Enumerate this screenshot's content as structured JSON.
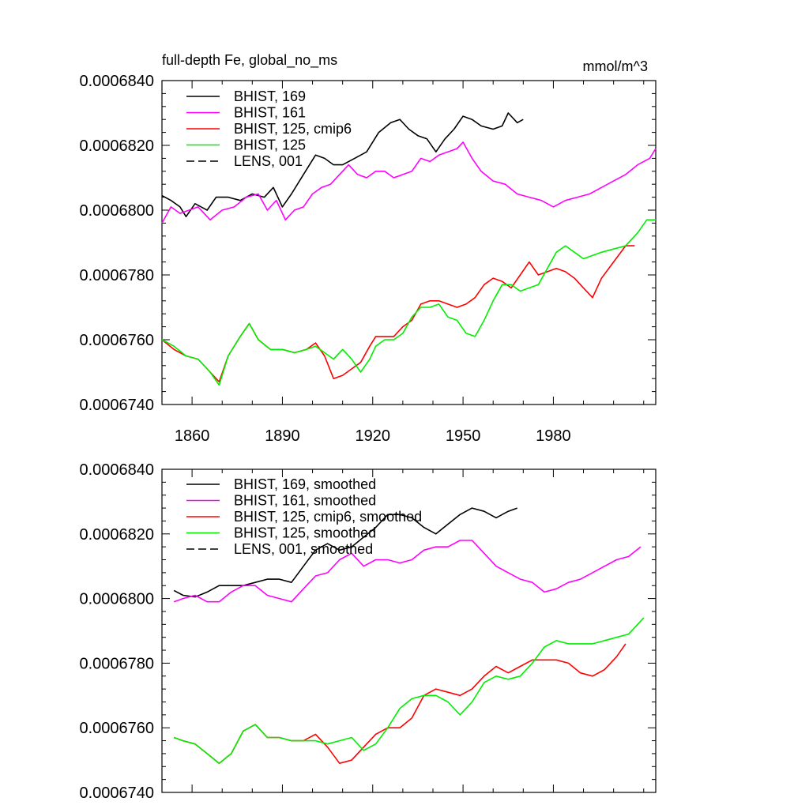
{
  "chart_data": [
    {
      "type": "line",
      "title": "full-depth Fe, global_no_ms",
      "units": "mmol/m^3",
      "xlabel": "",
      "ylabel": "",
      "xlim": [
        1850,
        2014
      ],
      "ylim": [
        0.000674,
        0.000684
      ],
      "yticks": [
        0.000674,
        0.000676,
        0.000678,
        0.00068,
        0.000682,
        0.000684
      ],
      "ytick_labels": [
        "0.0006740",
        "0.0006760",
        "0.0006780",
        "0.0006800",
        "0.0006820",
        "0.0006840"
      ],
      "xticks": [
        1860,
        1890,
        1920,
        1950,
        1980
      ],
      "xtick_labels": [
        "1860",
        "1890",
        "1920",
        "1950",
        "1980"
      ],
      "legend_position": "top-left",
      "series": [
        {
          "name": "BHIST, 169",
          "color": "#000000",
          "dash": "solid",
          "x": [
            1850,
            1853,
            1856,
            1858,
            1861,
            1865,
            1868,
            1872,
            1876,
            1880,
            1884,
            1887,
            1890,
            1893,
            1897,
            1901,
            1904,
            1907,
            1910,
            1914,
            1918,
            1922,
            1926,
            1929,
            1932,
            1935,
            1938,
            1941,
            1944,
            1947,
            1950,
            1953,
            1956,
            1960,
            1963,
            1965,
            1968,
            1970
          ],
          "y": [
            0.00068045,
            0.0006803,
            0.0006801,
            0.0006798,
            0.0006802,
            0.00068,
            0.0006804,
            0.0006804,
            0.0006803,
            0.0006805,
            0.0006804,
            0.0006807,
            0.0006801,
            0.0006805,
            0.0006811,
            0.0006817,
            0.0006816,
            0.0006814,
            0.0006814,
            0.0006816,
            0.0006818,
            0.0006824,
            0.0006827,
            0.0006828,
            0.0006825,
            0.0006823,
            0.0006822,
            0.0006818,
            0.0006822,
            0.0006825,
            0.0006829,
            0.0006828,
            0.0006826,
            0.0006825,
            0.0006826,
            0.000683,
            0.0006827,
            0.0006828
          ]
        },
        {
          "name": "BHIST, 161",
          "color": "#ff00ff",
          "dash": "solid",
          "x": [
            1850,
            1853,
            1856,
            1859,
            1862,
            1866,
            1870,
            1874,
            1878,
            1882,
            1885,
            1888,
            1891,
            1894,
            1897,
            1900,
            1903,
            1906,
            1909,
            1912,
            1915,
            1918,
            1921,
            1924,
            1927,
            1930,
            1933,
            1936,
            1939,
            1942,
            1945,
            1948,
            1950,
            1953,
            1956,
            1960,
            1964,
            1968,
            1972,
            1976,
            1980,
            1984,
            1988,
            1992,
            1996,
            2000,
            2004,
            2008,
            2012,
            2014
          ],
          "y": [
            0.0006796,
            0.0006801,
            0.0006799,
            0.00068,
            0.0006801,
            0.0006797,
            0.00068,
            0.0006801,
            0.0006804,
            0.0006805,
            0.00068,
            0.0006803,
            0.0006797,
            0.00068,
            0.0006801,
            0.0006805,
            0.0006807,
            0.0006808,
            0.0006811,
            0.0006814,
            0.0006811,
            0.000681,
            0.0006812,
            0.0006812,
            0.000681,
            0.0006811,
            0.0006812,
            0.0006816,
            0.0006815,
            0.0006817,
            0.0006818,
            0.0006819,
            0.0006821,
            0.0006816,
            0.0006812,
            0.0006809,
            0.0006808,
            0.0006805,
            0.0006804,
            0.0006803,
            0.0006801,
            0.0006803,
            0.0006804,
            0.0006805,
            0.0006807,
            0.0006809,
            0.0006811,
            0.0006814,
            0.0006816,
            0.0006819
          ]
        },
        {
          "name": "BHIST, 125, cmip6",
          "color": "#ff0000",
          "dash": "solid",
          "x": [
            1850,
            1854,
            1858,
            1862,
            1866,
            1869,
            1872,
            1876,
            1879,
            1882,
            1886,
            1890,
            1894,
            1898,
            1901,
            1904,
            1907,
            1910,
            1913,
            1916,
            1919,
            1921,
            1924,
            1927,
            1930,
            1933,
            1936,
            1939,
            1942,
            1945,
            1948,
            1951,
            1954,
            1957,
            1960,
            1963,
            1966,
            1969,
            1972,
            1975,
            1978,
            1981,
            1984,
            1987,
            1990,
            1993,
            1996,
            2000,
            2004,
            2007
          ],
          "y": [
            0.000676,
            0.0006757,
            0.0006755,
            0.0006754,
            0.000675,
            0.0006747,
            0.0006755,
            0.0006761,
            0.0006765,
            0.000676,
            0.0006757,
            0.0006757,
            0.0006756,
            0.0006757,
            0.0006759,
            0.0006755,
            0.0006748,
            0.0006749,
            0.0006751,
            0.0006753,
            0.0006758,
            0.0006761,
            0.0006761,
            0.0006761,
            0.0006764,
            0.0006766,
            0.0006771,
            0.0006772,
            0.0006772,
            0.0006771,
            0.000677,
            0.0006771,
            0.0006773,
            0.0006777,
            0.0006779,
            0.0006778,
            0.0006776,
            0.000678,
            0.0006784,
            0.000678,
            0.0006781,
            0.0006782,
            0.0006781,
            0.0006779,
            0.0006776,
            0.0006773,
            0.0006779,
            0.0006784,
            0.0006789,
            0.0006789
          ]
        },
        {
          "name": "BHIST, 125",
          "color": "#00ee00",
          "dash": "solid",
          "x": [
            1850,
            1854,
            1858,
            1862,
            1866,
            1869,
            1872,
            1876,
            1879,
            1882,
            1886,
            1890,
            1894,
            1898,
            1901,
            1904,
            1907,
            1910,
            1913,
            1916,
            1919,
            1921,
            1924,
            1927,
            1930,
            1933,
            1936,
            1939,
            1942,
            1945,
            1948,
            1951,
            1954,
            1957,
            1960,
            1963,
            1966,
            1969,
            1972,
            1975,
            1978,
            1981,
            1984,
            1987,
            1990,
            1993,
            1996,
            2000,
            2004,
            2008,
            2011,
            2014
          ],
          "y": [
            0.000676,
            0.0006758,
            0.0006755,
            0.0006754,
            0.000675,
            0.0006746,
            0.0006755,
            0.0006761,
            0.0006765,
            0.000676,
            0.0006757,
            0.0006757,
            0.0006756,
            0.0006757,
            0.0006758,
            0.0006756,
            0.0006754,
            0.0006757,
            0.0006754,
            0.000675,
            0.0006754,
            0.0006758,
            0.000676,
            0.000676,
            0.0006762,
            0.0006767,
            0.000677,
            0.000677,
            0.0006771,
            0.0006767,
            0.0006766,
            0.0006762,
            0.0006761,
            0.0006766,
            0.0006772,
            0.0006777,
            0.0006777,
            0.0006775,
            0.0006776,
            0.0006777,
            0.0006782,
            0.0006787,
            0.0006789,
            0.0006787,
            0.0006785,
            0.0006786,
            0.0006787,
            0.0006788,
            0.0006789,
            0.0006793,
            0.0006797,
            0.0006797
          ]
        },
        {
          "name": "LENS, 001",
          "color": "#000000",
          "dash": "dashed",
          "x": [],
          "y": []
        }
      ]
    },
    {
      "type": "line",
      "title": "",
      "units": "",
      "xlabel": "",
      "ylabel": "",
      "xlim": [
        1850,
        2014
      ],
      "ylim": [
        0.000674,
        0.000684
      ],
      "yticks": [
        0.000674,
        0.000676,
        0.000678,
        0.00068,
        0.000682,
        0.000684
      ],
      "ytick_labels": [
        "0.0006740",
        "0.0006760",
        "0.0006780",
        "0.0006800",
        "0.0006820",
        "0.0006840"
      ],
      "xticks": [
        1860,
        1890,
        1920,
        1950,
        1980
      ],
      "xtick_labels": [],
      "legend_position": "top-left",
      "series": [
        {
          "name": "BHIST, 169, smoothed",
          "color": "#000000",
          "dash": "solid",
          "x": [
            1854,
            1857,
            1861,
            1865,
            1869,
            1873,
            1877,
            1881,
            1885,
            1889,
            1893,
            1897,
            1901,
            1905,
            1909,
            1913,
            1917,
            1921,
            1925,
            1929,
            1933,
            1937,
            1941,
            1945,
            1949,
            1953,
            1957,
            1961,
            1965,
            1968
          ],
          "y": [
            0.00068025,
            0.0006801,
            0.00068005,
            0.0006802,
            0.0006804,
            0.0006804,
            0.0006804,
            0.0006805,
            0.0006806,
            0.0006806,
            0.0006805,
            0.000681,
            0.0006815,
            0.0006817,
            0.0006815,
            0.0006816,
            0.0006819,
            0.0006822,
            0.0006826,
            0.0006826,
            0.0006825,
            0.0006822,
            0.000682,
            0.0006823,
            0.0006826,
            0.0006828,
            0.0006827,
            0.0006825,
            0.0006827,
            0.0006828
          ]
        },
        {
          "name": "BHIST, 161, smoothed",
          "color": "#ff00ff",
          "dash": "solid",
          "x": [
            1854,
            1857,
            1861,
            1865,
            1869,
            1873,
            1877,
            1881,
            1885,
            1889,
            1893,
            1897,
            1901,
            1905,
            1909,
            1913,
            1917,
            1921,
            1925,
            1929,
            1933,
            1937,
            1941,
            1945,
            1949,
            1953,
            1957,
            1961,
            1965,
            1969,
            1973,
            1977,
            1981,
            1985,
            1989,
            1993,
            1997,
            2001,
            2005,
            2009
          ],
          "y": [
            0.0006799,
            0.00068,
            0.0006801,
            0.0006799,
            0.0006799,
            0.0006802,
            0.0006804,
            0.0006804,
            0.0006801,
            0.00068,
            0.0006799,
            0.0006803,
            0.0006807,
            0.0006808,
            0.0006812,
            0.0006814,
            0.000681,
            0.0006812,
            0.0006812,
            0.0006811,
            0.0006812,
            0.0006815,
            0.0006816,
            0.0006816,
            0.0006818,
            0.0006818,
            0.0006814,
            0.000681,
            0.0006808,
            0.0006806,
            0.0006805,
            0.0006802,
            0.0006803,
            0.0006805,
            0.0006806,
            0.0006808,
            0.000681,
            0.0006812,
            0.0006813,
            0.0006816
          ]
        },
        {
          "name": "BHIST, 125, cmip6, smoothed",
          "color": "#ff0000",
          "dash": "solid",
          "x": [
            1854,
            1857,
            1861,
            1865,
            1869,
            1873,
            1877,
            1881,
            1885,
            1889,
            1893,
            1897,
            1901,
            1905,
            1909,
            1913,
            1917,
            1921,
            1925,
            1929,
            1933,
            1937,
            1941,
            1945,
            1949,
            1953,
            1957,
            1961,
            1965,
            1969,
            1973,
            1977,
            1981,
            1985,
            1989,
            1993,
            1997,
            2001,
            2004
          ],
          "y": [
            0.0006757,
            0.0006756,
            0.0006755,
            0.0006752,
            0.0006749,
            0.0006752,
            0.0006759,
            0.0006761,
            0.0006757,
            0.0006757,
            0.0006756,
            0.0006756,
            0.0006758,
            0.0006754,
            0.0006749,
            0.000675,
            0.0006754,
            0.0006758,
            0.000676,
            0.000676,
            0.0006763,
            0.000677,
            0.0006772,
            0.0006771,
            0.000677,
            0.0006772,
            0.0006776,
            0.0006779,
            0.0006777,
            0.0006779,
            0.0006781,
            0.0006781,
            0.0006781,
            0.000678,
            0.0006777,
            0.0006776,
            0.0006778,
            0.0006782,
            0.0006786
          ]
        },
        {
          "name": "BHIST, 125, smoothed",
          "color": "#00ee00",
          "dash": "solid",
          "x": [
            1854,
            1857,
            1861,
            1865,
            1869,
            1873,
            1877,
            1881,
            1885,
            1889,
            1893,
            1897,
            1901,
            1905,
            1909,
            1913,
            1917,
            1921,
            1925,
            1929,
            1933,
            1937,
            1941,
            1945,
            1949,
            1953,
            1957,
            1961,
            1965,
            1969,
            1973,
            1977,
            1981,
            1985,
            1989,
            1993,
            1997,
            2001,
            2005,
            2010
          ],
          "y": [
            0.0006757,
            0.0006756,
            0.0006755,
            0.0006752,
            0.0006749,
            0.0006752,
            0.0006759,
            0.0006761,
            0.0006757,
            0.0006757,
            0.0006756,
            0.0006756,
            0.0006756,
            0.0006755,
            0.0006756,
            0.0006757,
            0.0006753,
            0.0006755,
            0.000676,
            0.0006766,
            0.0006769,
            0.000677,
            0.000677,
            0.0006768,
            0.0006764,
            0.0006768,
            0.0006774,
            0.0006776,
            0.0006775,
            0.0006776,
            0.000678,
            0.0006785,
            0.0006787,
            0.0006786,
            0.0006786,
            0.0006786,
            0.0006787,
            0.0006788,
            0.0006789,
            0.0006794
          ]
        },
        {
          "name": "LENS, 001, smoothed",
          "color": "#000000",
          "dash": "dashed",
          "x": [],
          "y": []
        }
      ]
    }
  ]
}
